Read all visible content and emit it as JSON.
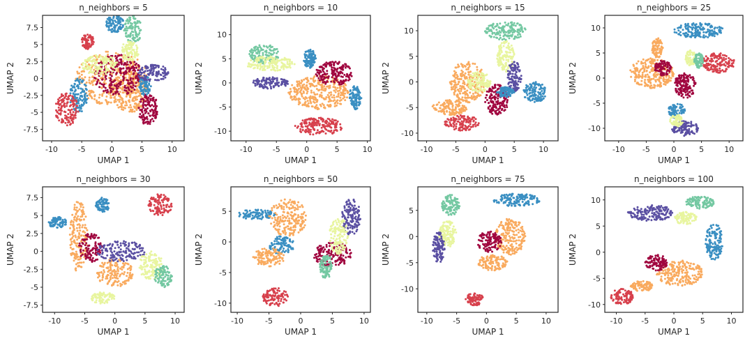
{
  "colors": {
    "red": "#d7404c",
    "crimson": "#a0063f",
    "orange": "#f9aa5e",
    "yellow": "#e8f59f",
    "green": "#74c8a2",
    "blue": "#3a8fc2",
    "purple": "#5a4fa2",
    "axis": "#262626"
  },
  "chart_data": [
    {
      "type": "scatter",
      "title": "n_neighbors = 5",
      "xlabel": "UMAP 1",
      "ylabel": "UMAP 2",
      "xlim": [
        -11.5,
        12
      ],
      "ylim": [
        -9.2,
        9.3
      ],
      "xticks": [
        -10,
        -5,
        0,
        5,
        10
      ],
      "yticks": [
        -7.5,
        -5,
        -2.5,
        0,
        2.5,
        5,
        7.5
      ],
      "clusters": [
        {
          "color": "orange",
          "cx": 0,
          "cy": 0,
          "rx": 6,
          "ry": 4
        },
        {
          "color": "orange",
          "cx": 3,
          "cy": -2,
          "rx": 3,
          "ry": 3
        },
        {
          "color": "crimson",
          "cx": 6,
          "cy": -4.5,
          "rx": 1.6,
          "ry": 2.5
        },
        {
          "color": "crimson",
          "cx": 1,
          "cy": 0.5,
          "rx": 4,
          "ry": 3
        },
        {
          "color": "blue",
          "cx": 0.5,
          "cy": 8,
          "rx": 1.5,
          "ry": 1.3
        },
        {
          "color": "blue",
          "cx": -5.5,
          "cy": -2.5,
          "rx": 1.5,
          "ry": 2.5
        },
        {
          "color": "blue",
          "cx": 5.5,
          "cy": -1,
          "rx": 1,
          "ry": 1.5
        },
        {
          "color": "green",
          "cx": 3.5,
          "cy": 7.2,
          "rx": 1.5,
          "ry": 2
        },
        {
          "color": "red",
          "cx": -7.5,
          "cy": -4.5,
          "rx": 2,
          "ry": 2.5
        },
        {
          "color": "red",
          "cx": -4,
          "cy": 5.5,
          "rx": 1,
          "ry": 1.2
        },
        {
          "color": "purple",
          "cx": 6.8,
          "cy": 0.8,
          "rx": 2.8,
          "ry": 1.2
        },
        {
          "color": "yellow",
          "cx": -2,
          "cy": 2,
          "rx": 3,
          "ry": 1.5
        },
        {
          "color": "yellow",
          "cx": 3,
          "cy": 4,
          "rx": 1.5,
          "ry": 1.5
        }
      ]
    },
    {
      "type": "scatter",
      "title": "n_neighbors = 10",
      "xlabel": "UMAP 1",
      "ylabel": "UMAP 2",
      "xlim": [
        -12.5,
        10.5
      ],
      "ylim": [
        -12,
        14
      ],
      "xticks": [
        -10,
        -5,
        0,
        5,
        10
      ],
      "yticks": [
        -10,
        -5,
        0,
        5,
        10
      ],
      "clusters": [
        {
          "color": "green",
          "cx": -7,
          "cy": 6,
          "rx": 2.5,
          "ry": 2
        },
        {
          "color": "yellow",
          "cx": -6,
          "cy": 4,
          "rx": 4,
          "ry": 1.5
        },
        {
          "color": "purple",
          "cx": -6,
          "cy": 0,
          "rx": 3,
          "ry": 1.2
        },
        {
          "color": "orange",
          "cx": 2,
          "cy": -2,
          "rx": 5,
          "ry": 3.5
        },
        {
          "color": "crimson",
          "cx": 4.5,
          "cy": 2,
          "rx": 3,
          "ry": 2.5
        },
        {
          "color": "blue",
          "cx": 8,
          "cy": -3,
          "rx": 1,
          "ry": 2.5
        },
        {
          "color": "blue",
          "cx": 0.5,
          "cy": 5,
          "rx": 1,
          "ry": 2
        },
        {
          "color": "red",
          "cx": 2,
          "cy": -9,
          "rx": 4,
          "ry": 1.8
        }
      ]
    },
    {
      "type": "scatter",
      "title": "n_neighbors = 15",
      "xlabel": "UMAP 1",
      "ylabel": "UMAP 2",
      "xlim": [
        -11.5,
        12.5
      ],
      "ylim": [
        -11.5,
        13
      ],
      "xticks": [
        -10,
        -5,
        0,
        5,
        10
      ],
      "yticks": [
        -10,
        -5,
        0,
        5,
        10
      ],
      "clusters": [
        {
          "color": "green",
          "cx": 3.5,
          "cy": 10,
          "rx": 3.5,
          "ry": 1.8
        },
        {
          "color": "yellow",
          "cx": 3.5,
          "cy": 5,
          "rx": 1.5,
          "ry": 3
        },
        {
          "color": "purple",
          "cx": 5,
          "cy": 1,
          "rx": 1.2,
          "ry": 3
        },
        {
          "color": "orange",
          "cx": -3,
          "cy": 0,
          "rx": 3,
          "ry": 4
        },
        {
          "color": "orange",
          "cx": -6,
          "cy": -5,
          "rx": 3,
          "ry": 1.5
        },
        {
          "color": "crimson",
          "cx": 2,
          "cy": -3.5,
          "rx": 2,
          "ry": 3
        },
        {
          "color": "blue",
          "cx": 8.5,
          "cy": -2,
          "rx": 2,
          "ry": 2
        },
        {
          "color": "blue",
          "cx": 3.5,
          "cy": -2,
          "rx": 1.5,
          "ry": 1
        },
        {
          "color": "red",
          "cx": -4,
          "cy": -8,
          "rx": 3,
          "ry": 1.5
        },
        {
          "color": "yellow",
          "cx": -1,
          "cy": 0,
          "rx": 2,
          "ry": 2
        }
      ]
    },
    {
      "type": "scatter",
      "title": "n_neighbors = 25",
      "xlabel": "UMAP 1",
      "ylabel": "UMAP 2",
      "xlim": [
        -12.5,
        12.5
      ],
      "ylim": [
        -12.5,
        12.5
      ],
      "xticks": [
        -10,
        -5,
        0,
        5,
        10
      ],
      "yticks": [
        -10,
        -5,
        0,
        5,
        10
      ],
      "clusters": [
        {
          "color": "blue",
          "cx": 4.5,
          "cy": 9.5,
          "rx": 4.5,
          "ry": 1.5
        },
        {
          "color": "blue",
          "cx": 0.5,
          "cy": -6.5,
          "rx": 1.5,
          "ry": 1.5
        },
        {
          "color": "red",
          "cx": 8,
          "cy": 3,
          "rx": 3,
          "ry": 2
        },
        {
          "color": "orange",
          "cx": -4,
          "cy": 1,
          "rx": 4,
          "ry": 3
        },
        {
          "color": "orange",
          "cx": -3,
          "cy": 6,
          "rx": 1,
          "ry": 2
        },
        {
          "color": "crimson",
          "cx": 2,
          "cy": -1.5,
          "rx": 2,
          "ry": 2.5
        },
        {
          "color": "crimson",
          "cx": -2,
          "cy": 2,
          "rx": 1.5,
          "ry": 1.5
        },
        {
          "color": "yellow",
          "cx": 3,
          "cy": 4,
          "rx": 1,
          "ry": 1.5
        },
        {
          "color": "green",
          "cx": 4.5,
          "cy": 3.5,
          "rx": 0.8,
          "ry": 1.5
        },
        {
          "color": "purple",
          "cx": 2,
          "cy": -10,
          "rx": 2.5,
          "ry": 1.5
        },
        {
          "color": "yellow",
          "cx": 0.5,
          "cy": -8.5,
          "rx": 1.2,
          "ry": 1.2
        }
      ]
    },
    {
      "type": "scatter",
      "title": "n_neighbors = 30",
      "xlabel": "UMAP 1",
      "ylabel": "UMAP 2",
      "xlim": [
        -12,
        11.5
      ],
      "ylim": [
        -8.5,
        9
      ],
      "xticks": [
        -10,
        -5,
        0,
        5,
        10
      ],
      "yticks": [
        -7.5,
        -5,
        -2.5,
        0,
        2.5,
        5,
        7.5
      ],
      "clusters": [
        {
          "color": "blue",
          "cx": -9.5,
          "cy": 4,
          "rx": 1.5,
          "ry": 0.8
        },
        {
          "color": "blue",
          "cx": -2,
          "cy": 6.5,
          "rx": 1.2,
          "ry": 1
        },
        {
          "color": "red",
          "cx": 7.5,
          "cy": 6.5,
          "rx": 2,
          "ry": 1.5
        },
        {
          "color": "orange",
          "cx": -6,
          "cy": 2,
          "rx": 1.5,
          "ry": 5
        },
        {
          "color": "orange",
          "cx": 0,
          "cy": -3,
          "rx": 3,
          "ry": 2
        },
        {
          "color": "crimson",
          "cx": -4,
          "cy": 0.5,
          "rx": 2,
          "ry": 2
        },
        {
          "color": "purple",
          "cx": 1,
          "cy": 0,
          "rx": 4,
          "ry": 1.5
        },
        {
          "color": "yellow",
          "cx": 6,
          "cy": -2,
          "rx": 2,
          "ry": 2
        },
        {
          "color": "green",
          "cx": 8,
          "cy": -3.5,
          "rx": 1.5,
          "ry": 1.5
        },
        {
          "color": "yellow",
          "cx": -2,
          "cy": -6.5,
          "rx": 2,
          "ry": 0.8
        }
      ]
    },
    {
      "type": "scatter",
      "title": "n_neighbors = 50",
      "xlabel": "UMAP 1",
      "ylabel": "UMAP 2",
      "xlim": [
        -11,
        11
      ],
      "ylim": [
        -11.5,
        9
      ],
      "xticks": [
        -10,
        -5,
        0,
        5,
        10
      ],
      "yticks": [
        -10,
        -5,
        0,
        5
      ],
      "clusters": [
        {
          "color": "blue",
          "cx": -7,
          "cy": 4.5,
          "rx": 3,
          "ry": 0.8
        },
        {
          "color": "blue",
          "cx": -3,
          "cy": -0.5,
          "rx": 2,
          "ry": 1.5
        },
        {
          "color": "orange",
          "cx": -2,
          "cy": 4,
          "rx": 3,
          "ry": 3
        },
        {
          "color": "orange",
          "cx": -5,
          "cy": -2.5,
          "rx": 2.5,
          "ry": 1.5
        },
        {
          "color": "crimson",
          "cx": 5,
          "cy": -2,
          "rx": 3,
          "ry": 2
        },
        {
          "color": "purple",
          "cx": 8,
          "cy": 4,
          "rx": 1.5,
          "ry": 3
        },
        {
          "color": "yellow",
          "cx": 6,
          "cy": 1,
          "rx": 1.5,
          "ry": 3
        },
        {
          "color": "green",
          "cx": 4,
          "cy": -4,
          "rx": 1,
          "ry": 2
        },
        {
          "color": "red",
          "cx": -4,
          "cy": -9,
          "rx": 2,
          "ry": 1.5
        }
      ]
    },
    {
      "type": "scatter",
      "title": "n_neighbors = 75",
      "xlabel": "UMAP 1",
      "ylabel": "UMAP 2",
      "xlim": [
        -11.5,
        12
      ],
      "ylim": [
        -14.5,
        9.5
      ],
      "xticks": [
        -10,
        -5,
        0,
        5,
        10
      ],
      "yticks": [
        -10,
        -5,
        0,
        5
      ],
      "clusters": [
        {
          "color": "green",
          "cx": -6,
          "cy": 6,
          "rx": 1.5,
          "ry": 2
        },
        {
          "color": "yellow",
          "cx": -6.5,
          "cy": 0.5,
          "rx": 1.5,
          "ry": 2.5
        },
        {
          "color": "purple",
          "cx": -8,
          "cy": -2,
          "rx": 1,
          "ry": 3
        },
        {
          "color": "blue",
          "cx": 5,
          "cy": 7,
          "rx": 4,
          "ry": 1.2
        },
        {
          "color": "orange",
          "cx": 4,
          "cy": 0,
          "rx": 2.5,
          "ry": 3.5
        },
        {
          "color": "orange",
          "cx": 1,
          "cy": -5,
          "rx": 2.5,
          "ry": 1.5
        },
        {
          "color": "crimson",
          "cx": 0.5,
          "cy": -1,
          "rx": 2,
          "ry": 2
        },
        {
          "color": "red",
          "cx": -2,
          "cy": -12,
          "rx": 1.5,
          "ry": 1.2
        }
      ]
    },
    {
      "type": "scatter",
      "title": "n_neighbors = 100",
      "xlabel": "UMAP 1",
      "ylabel": "UMAP 2",
      "xlim": [
        -12,
        12
      ],
      "ylim": [
        -11.5,
        12.5
      ],
      "xticks": [
        -10,
        -5,
        0,
        5,
        10
      ],
      "yticks": [
        -10,
        -5,
        0,
        5,
        10
      ],
      "clusters": [
        {
          "color": "purple",
          "cx": -4,
          "cy": 7.5,
          "rx": 4,
          "ry": 1.5
        },
        {
          "color": "green",
          "cx": 4.5,
          "cy": 9.5,
          "rx": 2.5,
          "ry": 1.2
        },
        {
          "color": "yellow",
          "cx": 2,
          "cy": 6.5,
          "rx": 2,
          "ry": 1.2
        },
        {
          "color": "blue",
          "cx": 7,
          "cy": 2,
          "rx": 1.5,
          "ry": 3.5
        },
        {
          "color": "orange",
          "cx": 1,
          "cy": -4,
          "rx": 4,
          "ry": 2.5
        },
        {
          "color": "crimson",
          "cx": -3,
          "cy": -2,
          "rx": 2,
          "ry": 1.5
        },
        {
          "color": "orange",
          "cx": -5.5,
          "cy": -6.5,
          "rx": 2,
          "ry": 1
        },
        {
          "color": "red",
          "cx": -9,
          "cy": -8.5,
          "rx": 2,
          "ry": 1.5
        }
      ]
    }
  ]
}
